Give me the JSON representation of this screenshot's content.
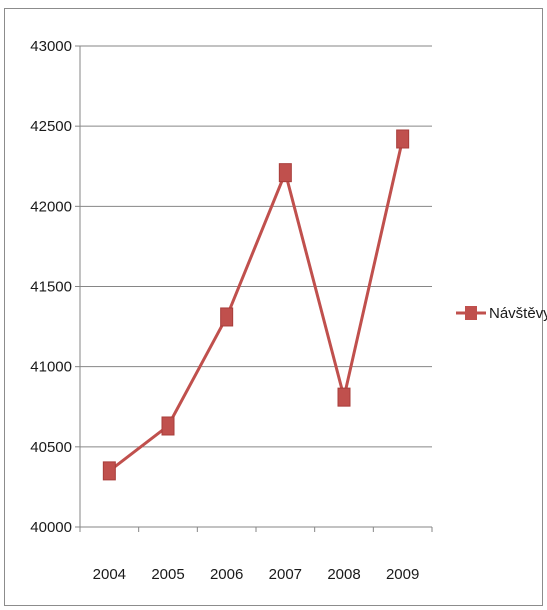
{
  "chart_data": {
    "type": "line",
    "title": "",
    "xlabel": "",
    "ylabel": "",
    "categories": [
      "2004",
      "2005",
      "2006",
      "2007",
      "2008",
      "2009"
    ],
    "series": [
      {
        "name": "Návštěvy",
        "values": [
          40350,
          40630,
          41310,
          42210,
          40810,
          42420
        ],
        "color": "#c0504d",
        "marker": "square"
      }
    ],
    "ylim": [
      40000,
      43000
    ],
    "yticks": [
      40000,
      40500,
      41000,
      41500,
      42000,
      42500,
      43000
    ],
    "ytick_labels": [
      "40000",
      "40500",
      "41000",
      "41500",
      "42000",
      "42500",
      "43000"
    ],
    "grid": true,
    "legend": "right"
  }
}
